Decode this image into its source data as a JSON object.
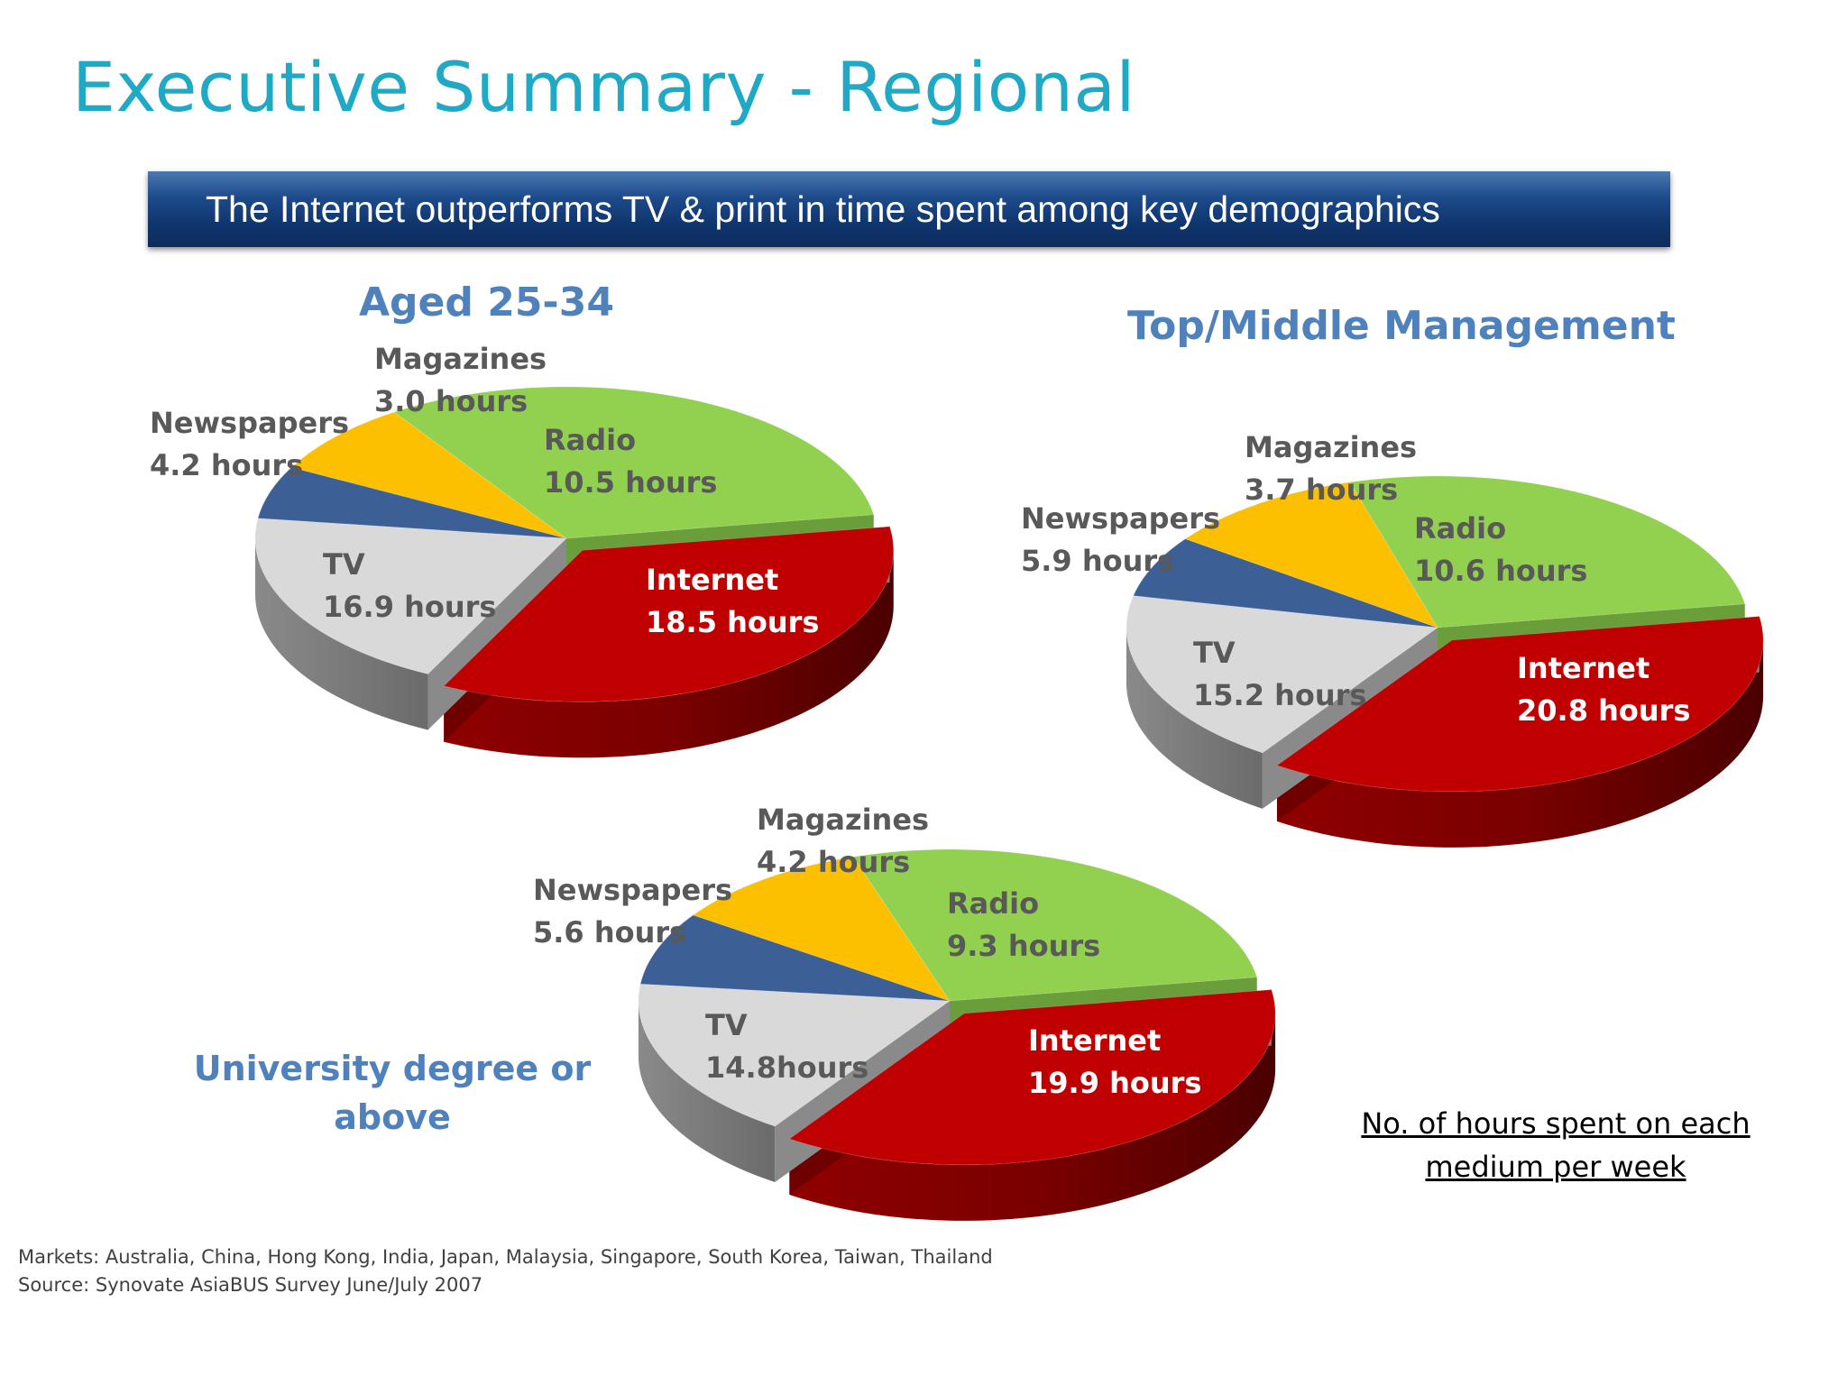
{
  "title": "Executive Summary - Regional",
  "banner": "The Internet outperforms TV & print in time spent among key demographics",
  "note": "No. of hours spent on each medium per week",
  "footer": {
    "markets": "Markets: Australia, China, Hong Kong, India, Japan, Malaysia, Singapore, South Korea, Taiwan, Thailand",
    "source": "Source: Synovate AsiaBUS Survey June/July 2007"
  },
  "colors": {
    "Internet": "#c00000",
    "Radio": "#d9d9d9",
    "Magazines": "#3c5f95",
    "Newspapers": "#fcc000",
    "TV": "#92d050",
    "title": "#1fa9c4",
    "chart_title": "#4f81bd"
  },
  "chart_data": [
    {
      "type": "pie",
      "title": "Aged 25-34",
      "unit": "hours",
      "slices": [
        {
          "name": "Internet",
          "value": 18.5,
          "label": [
            "Internet",
            "18.5 hours"
          ]
        },
        {
          "name": "Radio",
          "value": 10.5,
          "label": [
            "Radio",
            "10.5 hours"
          ]
        },
        {
          "name": "Magazines",
          "value": 3.0,
          "label": [
            "Magazines",
            "3.0 hours"
          ]
        },
        {
          "name": "Newspapers",
          "value": 4.2,
          "label": [
            "Newspapers",
            "4.2 hours"
          ]
        },
        {
          "name": "TV",
          "value": 16.9,
          "label": [
            "TV",
            "16.9 hours"
          ]
        }
      ]
    },
    {
      "type": "pie",
      "title": "Top/Middle Management",
      "unit": "hours",
      "slices": [
        {
          "name": "Internet",
          "value": 20.8,
          "label": [
            "Internet",
            "20.8 hours"
          ]
        },
        {
          "name": "Radio",
          "value": 10.6,
          "label": [
            "Radio",
            "10.6 hours"
          ]
        },
        {
          "name": "Magazines",
          "value": 3.7,
          "label": [
            "Magazines",
            "3.7 hours"
          ]
        },
        {
          "name": "Newspapers",
          "value": 5.9,
          "label": [
            "Newspapers",
            "5.9 hours"
          ]
        },
        {
          "name": "TV",
          "value": 15.2,
          "label": [
            "TV",
            "15.2 hours"
          ]
        }
      ]
    },
    {
      "type": "pie",
      "title": "University degree or above",
      "unit": "hours",
      "slices": [
        {
          "name": "Internet",
          "value": 19.9,
          "label": [
            "Internet",
            "19.9 hours"
          ]
        },
        {
          "name": "Radio",
          "value": 9.3,
          "label": [
            "Radio",
            "9.3 hours"
          ]
        },
        {
          "name": "Magazines",
          "value": 4.2,
          "label": [
            "Magazines",
            "4.2 hours"
          ]
        },
        {
          "name": "Newspapers",
          "value": 5.6,
          "label": [
            "Newspapers",
            "5.6 hours"
          ]
        },
        {
          "name": "TV",
          "value": 14.8,
          "label": [
            "TV",
            "14.8hours"
          ]
        }
      ]
    }
  ]
}
